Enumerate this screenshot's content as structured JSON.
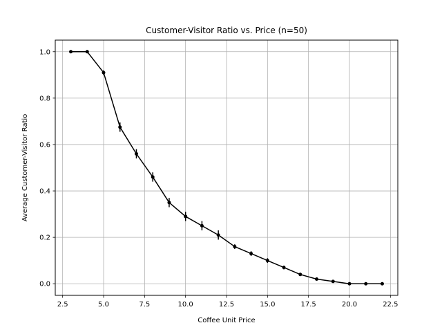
{
  "chart_data": {
    "type": "line",
    "title": "Customer-Visitor Ratio vs. Price (n=50)",
    "xlabel": "Coffee Unit Price",
    "ylabel": "Average Customer-Visitor Ratio",
    "xlim": [
      2.05,
      22.95
    ],
    "ylim": [
      -0.05,
      1.05
    ],
    "x_ticks": [
      2.5,
      5.0,
      7.5,
      10.0,
      12.5,
      15.0,
      17.5,
      20.0,
      22.5
    ],
    "x_tick_labels": [
      "2.5",
      "5.0",
      "7.5",
      "10.0",
      "12.5",
      "15.0",
      "17.5",
      "20.0",
      "22.5"
    ],
    "y_ticks": [
      0.0,
      0.2,
      0.4,
      0.6,
      0.8,
      1.0
    ],
    "y_tick_labels": [
      "0.0",
      "0.2",
      "0.4",
      "0.6",
      "0.8",
      "1.0"
    ],
    "grid": true,
    "line_color": "#000000",
    "grid_color": "#b0b0b0",
    "series": [
      {
        "x": [
          3,
          4,
          5,
          6,
          7,
          8,
          9,
          10,
          11,
          12,
          13,
          14,
          15,
          16,
          17,
          18,
          19,
          20,
          21,
          22
        ],
        "y": [
          1.0,
          1.0,
          0.91,
          0.675,
          0.56,
          0.46,
          0.35,
          0.29,
          0.25,
          0.21,
          0.16,
          0.13,
          0.1,
          0.07,
          0.04,
          0.02,
          0.01,
          0.0,
          0.0,
          0.0
        ],
        "err": [
          0.0,
          0.0,
          0.01,
          0.02,
          0.02,
          0.02,
          0.02,
          0.02,
          0.02,
          0.02,
          0.01,
          0.01,
          0.01,
          0.008,
          0.005,
          0.005,
          0.003,
          0.0,
          0.0,
          0.0
        ]
      }
    ]
  }
}
